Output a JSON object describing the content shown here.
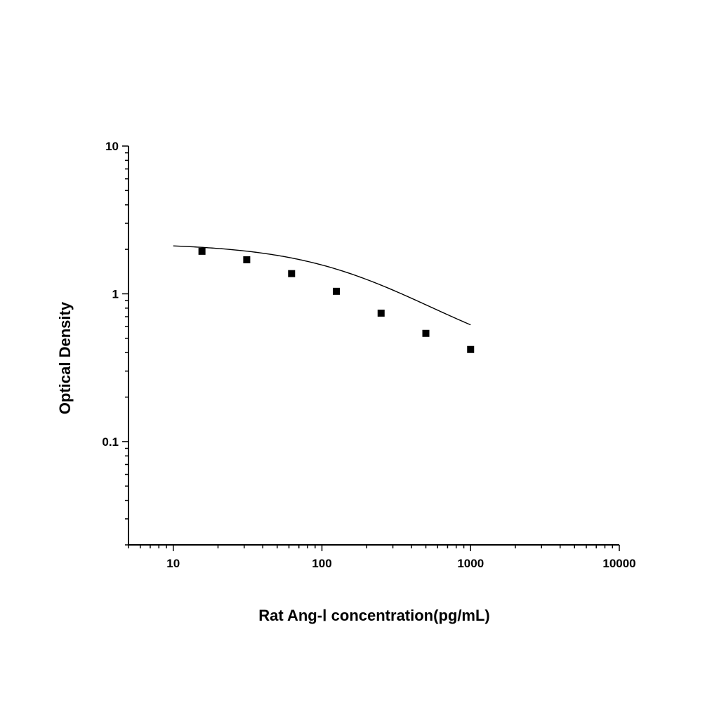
{
  "chart_data": {
    "type": "scatter",
    "title": "",
    "xlabel": "Rat Ang-Ⅰ concentration(pg/mL)",
    "ylabel": "Optical Density",
    "x_scale": "log",
    "y_scale": "log",
    "xlim": [
      5,
      10000
    ],
    "ylim": [
      0.02,
      10
    ],
    "x_ticks": [
      {
        "value": 10,
        "label": "10"
      },
      {
        "value": 100,
        "label": "100"
      },
      {
        "value": 1000,
        "label": "1000"
      },
      {
        "value": 10000,
        "label": "10000"
      }
    ],
    "y_ticks": [
      {
        "value": 0.1,
        "label": "0.1"
      },
      {
        "value": 1,
        "label": "1"
      },
      {
        "value": 10,
        "label": "10"
      }
    ],
    "grid": false,
    "colors": {
      "marker": "#000000",
      "line": "#000000",
      "axis": "#000000"
    },
    "series": [
      {
        "x": [
          15.6,
          31.2,
          62.5,
          125,
          250,
          500,
          1000
        ],
        "y": [
          1.94,
          1.7,
          1.37,
          1.04,
          0.74,
          0.54,
          0.42
        ]
      }
    ],
    "fit": {
      "type": "4PL",
      "a": 2.2,
      "d": 0.3,
      "c": 200,
      "b": 1.0,
      "x_range": [
        10,
        1000
      ]
    }
  }
}
